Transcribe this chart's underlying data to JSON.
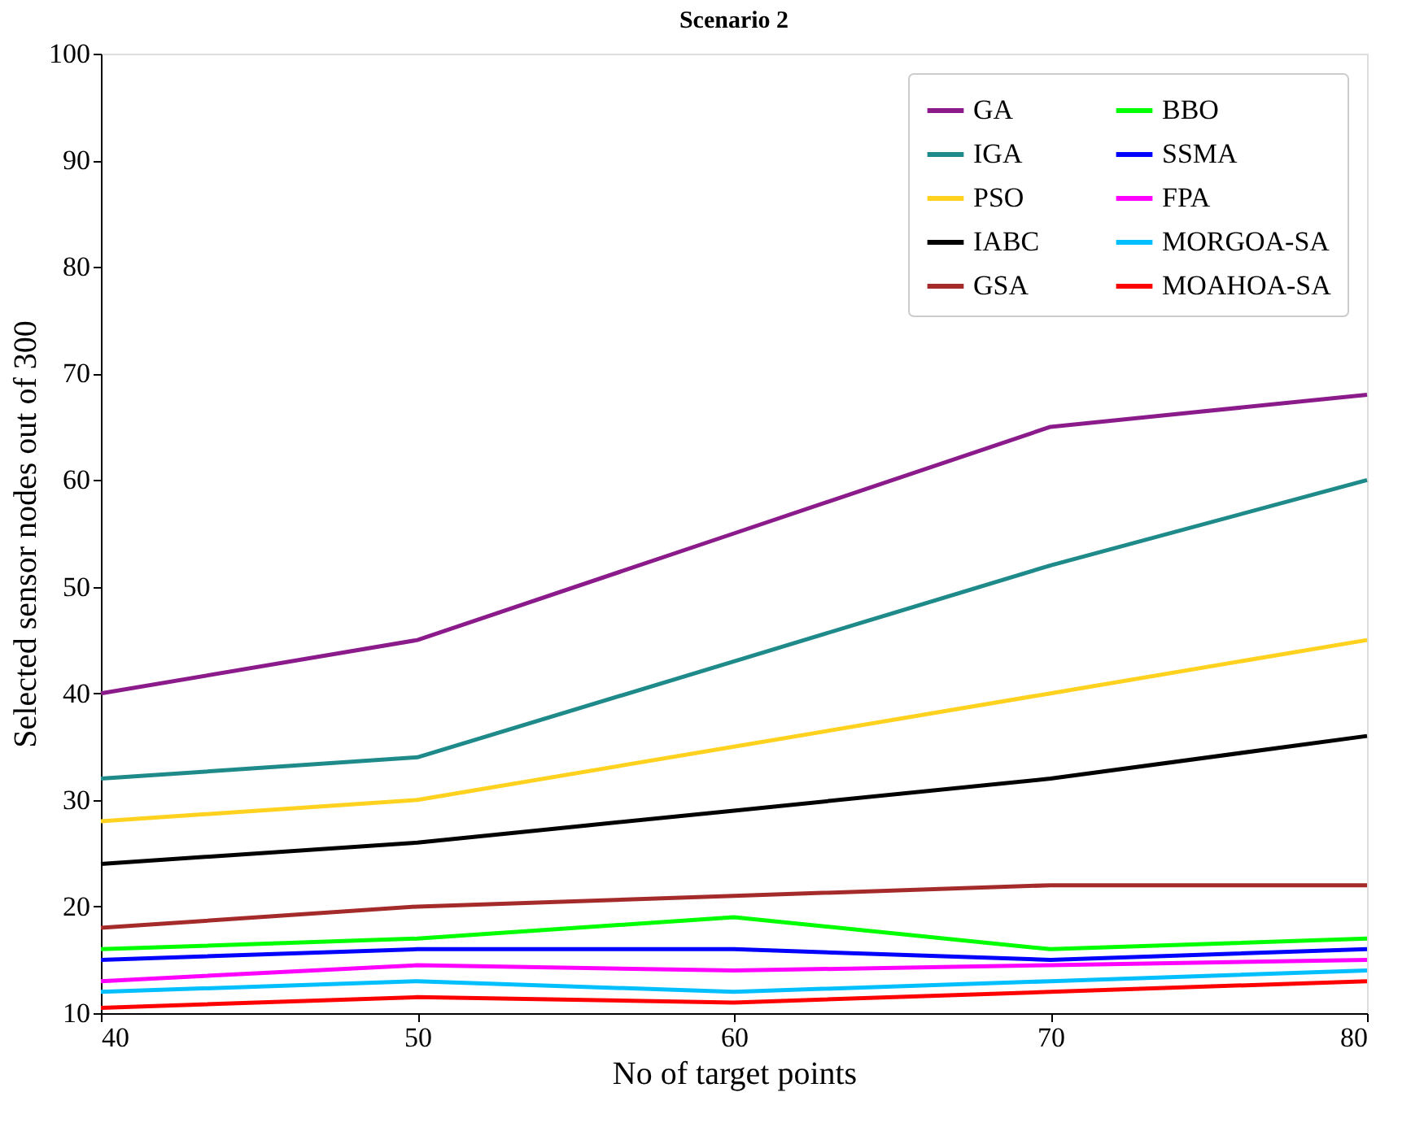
{
  "chart_data": {
    "type": "line",
    "title": "Scenario 2",
    "xlabel": "No of target points",
    "ylabel": "Selected sensor nodes out of 300",
    "x": [
      40,
      50,
      60,
      70,
      80
    ],
    "xlim": [
      40,
      80
    ],
    "xticks": [
      40,
      50,
      60,
      70,
      80
    ],
    "ylim": [
      10,
      100
    ],
    "yticks": [
      10,
      20,
      30,
      40,
      50,
      60,
      70,
      80,
      90,
      100
    ],
    "grid": false,
    "legend": "top right",
    "marker": "none",
    "line_style": "solid",
    "series": [
      {
        "name": "GA",
        "color": "#8b1a8b",
        "values": [
          40,
          45,
          55,
          65,
          68
        ]
      },
      {
        "name": "IGA",
        "color": "#1f8a8a",
        "values": [
          32,
          34,
          43,
          52,
          60
        ]
      },
      {
        "name": "PSO",
        "color": "#ffd21f",
        "values": [
          28,
          30,
          35,
          40,
          45
        ]
      },
      {
        "name": "IABC",
        "color": "#000000",
        "values": [
          24,
          26,
          29,
          32,
          36
        ]
      },
      {
        "name": "GSA",
        "color": "#a52a2a",
        "values": [
          18,
          20,
          21,
          22,
          22
        ]
      },
      {
        "name": "BBO",
        "color": "#00ff00",
        "values": [
          16,
          17,
          19,
          16,
          17
        ]
      },
      {
        "name": "SSMA",
        "color": "#0000ff",
        "values": [
          15,
          16,
          16,
          15,
          16
        ]
      },
      {
        "name": "FPA",
        "color": "#ff00ff",
        "values": [
          13,
          14.5,
          14,
          14.5,
          15
        ]
      },
      {
        "name": "MORGOA-SA",
        "color": "#00bfff",
        "values": [
          12,
          13,
          12,
          13,
          14
        ]
      },
      {
        "name": "MOAHOA-SA",
        "color": "#ff0000",
        "values": [
          10.5,
          11.5,
          11,
          12,
          13
        ]
      }
    ]
  }
}
